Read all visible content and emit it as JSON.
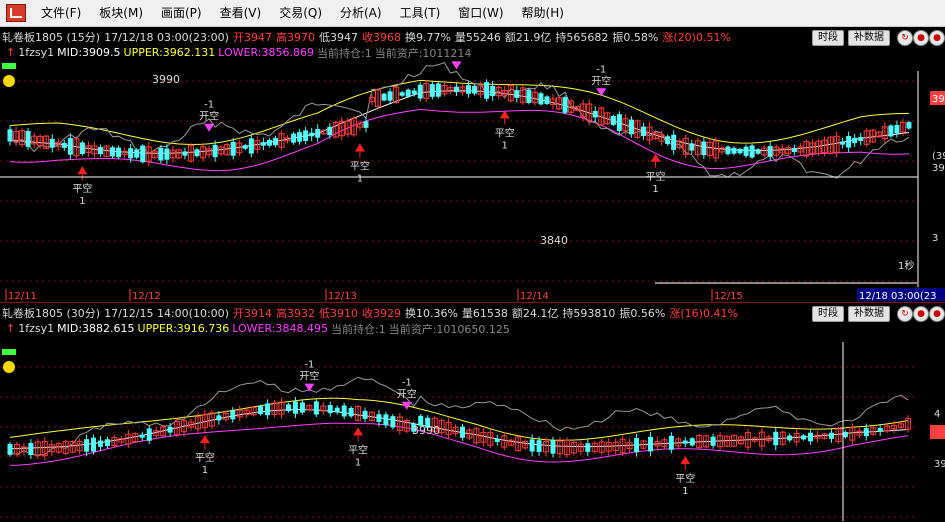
{
  "menu": [
    "文件(F)",
    "板块(M)",
    "画面(P)",
    "查看(V)",
    "交易(Q)",
    "分析(A)",
    "工具(T)",
    "窗口(W)",
    "帮助(H)"
  ],
  "panel1": {
    "title": "轧卷板1805 (15分)",
    "datetime": "17/12/18 03:00(23:00)",
    "open": "开3947",
    "high": "高3970",
    "low": "低3947",
    "close": "收3968",
    "turnover": "换9.77%",
    "volume": "量55246",
    "amount": "额21.9亿",
    "position": "持565682",
    "amplitude": "振0.58%",
    "change": "涨(20)0.51%",
    "indicator_name": "1fzsy1",
    "mid": "MID:3909.5",
    "upper": "UPPER:3962.131",
    "lower": "LOWER:3856.869",
    "holding": "当前持仓:1",
    "assets": "当前资产:1011214",
    "price_3990": "3990",
    "price_3840": "3840",
    "date_labels": [
      "12/11",
      "12/12",
      "12/13",
      "12/14",
      "12/15"
    ],
    "cursor_date": "12/18 03:00(23",
    "right_labels": [
      "39",
      "(39",
      "39",
      "3"
    ],
    "one_sec": "1秒",
    "signals": [
      {
        "type": "open",
        "text": "开空",
        "count": "1"
      },
      {
        "type": "close",
        "text": "平空",
        "count": "1"
      }
    ]
  },
  "panel2": {
    "title": "轧卷板1805 (30分)",
    "datetime": "17/12/15 14:00(10:00)",
    "open": "开3914",
    "high": "高3932",
    "low": "低3910",
    "close": "收3929",
    "turnover": "换10.36%",
    "volume": "量61538",
    "amount": "额24.1亿",
    "position": "持593810",
    "amplitude": "振0.56%",
    "change": "涨(16)0.41%",
    "indicator_name": "1fzsy1",
    "mid": "MID:3882.615",
    "upper": "UPPER:3916.736",
    "lower": "LOWER:3848.495",
    "holding": "当前持仓:1",
    "assets": "当前资产:1010650.125",
    "price_3990": "3990",
    "right_labels": [
      "4",
      "39",
      "39"
    ]
  },
  "buttons": {
    "period": "时段",
    "supplement": "补数据"
  },
  "signal_labels": {
    "open": "开空",
    "close": "平空",
    "one": "1",
    "minus_one": "-1"
  },
  "colors": {
    "up": "#ff3c3c",
    "down": "#54ffff",
    "upper": "#ffff40",
    "mid": "#ffffff",
    "lower": "#ff40ff",
    "grid": "#7a1010"
  }
}
